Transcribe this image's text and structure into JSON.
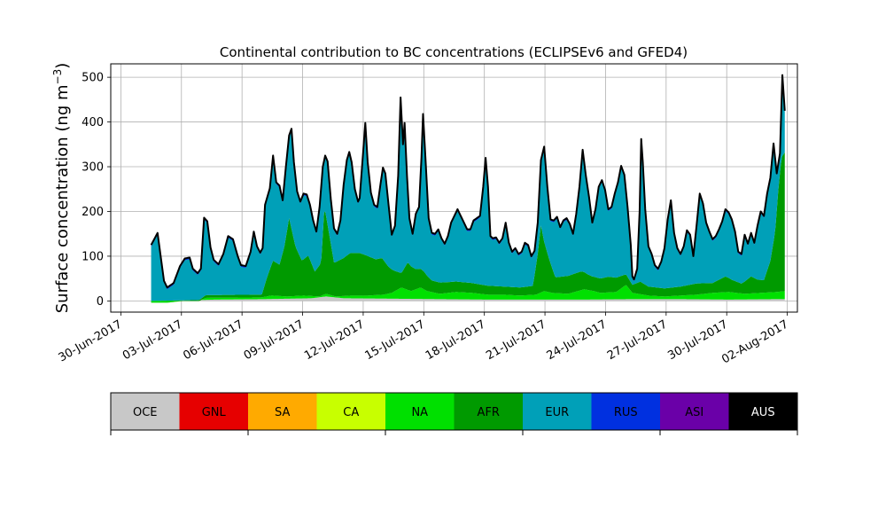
{
  "chart_data": {
    "type": "area",
    "title": "Continental contribution to BC concentrations (ECLIPSEv6 and GFED4)",
    "ylabel": "Surface concentration (ng m",
    "ylabel_sup": "−3",
    "ylabel_close": ")",
    "xlabel": "",
    "ylim": [
      -25,
      530
    ],
    "yticks": [
      0,
      100,
      200,
      300,
      400,
      500
    ],
    "xlim": [
      "2017-06-29T12:00",
      "2017-08-02T12:00"
    ],
    "xticks": [
      "30-Jun-2017",
      "03-Jul-2017",
      "06-Jul-2017",
      "09-Jul-2017",
      "12-Jul-2017",
      "15-Jul-2017",
      "18-Jul-2017",
      "21-Jul-2017",
      "24-Jul-2017",
      "27-Jul-2017",
      "30-Jul-2017",
      "02-Aug-2017"
    ],
    "grid": true,
    "legend_placement": "bottom colorbar",
    "categories": [
      "OCE",
      "GNL",
      "SA",
      "CA",
      "NA",
      "AFR",
      "EUR",
      "RUS",
      "ASI",
      "AUS"
    ],
    "colors": [
      "#c8c8c8",
      "#e60000",
      "#ffaa00",
      "#c8ff00",
      "#00e000",
      "#009a00",
      "#00a0b8",
      "#0030e0",
      "#6a00a8",
      "#000000"
    ],
    "series_time_start": "2017-07-01T12:00",
    "series_time_end": "2017-08-01T21:00",
    "total": [
      [
        0,
        125
      ],
      [
        0.4,
        152
      ],
      [
        0.8,
        45
      ],
      [
        1,
        30
      ],
      [
        1.4,
        40
      ],
      [
        1.8,
        78
      ],
      [
        2.1,
        95
      ],
      [
        2.4,
        97
      ],
      [
        2.6,
        72
      ],
      [
        2.9,
        62
      ],
      [
        3.1,
        72
      ],
      [
        3.3,
        186
      ],
      [
        3.5,
        178
      ],
      [
        3.7,
        120
      ],
      [
        3.9,
        92
      ],
      [
        4.2,
        82
      ],
      [
        4.5,
        105
      ],
      [
        4.8,
        145
      ],
      [
        5.1,
        138
      ],
      [
        5.4,
        100
      ],
      [
        5.6,
        80
      ],
      [
        5.9,
        78
      ],
      [
        6.2,
        110
      ],
      [
        6.4,
        155
      ],
      [
        6.6,
        122
      ],
      [
        6.8,
        108
      ],
      [
        6.95,
        118
      ],
      [
        7.1,
        215
      ],
      [
        7.4,
        252
      ],
      [
        7.6,
        325
      ],
      [
        7.8,
        265
      ],
      [
        8.0,
        258
      ],
      [
        8.2,
        225
      ],
      [
        8.4,
        300
      ],
      [
        8.6,
        370
      ],
      [
        8.75,
        385
      ],
      [
        8.9,
        310
      ],
      [
        9.1,
        245
      ],
      [
        9.3,
        222
      ],
      [
        9.5,
        240
      ],
      [
        9.7,
        238
      ],
      [
        9.9,
        215
      ],
      [
        10.1,
        180
      ],
      [
        10.3,
        155
      ],
      [
        10.5,
        210
      ],
      [
        10.7,
        300
      ],
      [
        10.85,
        325
      ],
      [
        11.0,
        312
      ],
      [
        11.2,
        228
      ],
      [
        11.4,
        162
      ],
      [
        11.6,
        150
      ],
      [
        11.8,
        180
      ],
      [
        12.0,
        260
      ],
      [
        12.2,
        315
      ],
      [
        12.35,
        333
      ],
      [
        12.5,
        310
      ],
      [
        12.7,
        250
      ],
      [
        12.9,
        222
      ],
      [
        13.0,
        230
      ],
      [
        13.2,
        325
      ],
      [
        13.35,
        398
      ],
      [
        13.5,
        310
      ],
      [
        13.7,
        242
      ],
      [
        13.9,
        215
      ],
      [
        14.1,
        210
      ],
      [
        14.3,
        262
      ],
      [
        14.45,
        298
      ],
      [
        14.6,
        285
      ],
      [
        14.8,
        215
      ],
      [
        15.0,
        148
      ],
      [
        15.2,
        168
      ],
      [
        15.4,
        280
      ],
      [
        15.55,
        455
      ],
      [
        15.7,
        350
      ],
      [
        15.8,
        398
      ],
      [
        15.95,
        280
      ],
      [
        16.1,
        185
      ],
      [
        16.3,
        150
      ],
      [
        16.5,
        195
      ],
      [
        16.7,
        210
      ],
      [
        16.85,
        320
      ],
      [
        16.95,
        418
      ],
      [
        17.1,
        320
      ],
      [
        17.3,
        185
      ],
      [
        17.5,
        152
      ],
      [
        17.7,
        150
      ],
      [
        17.9,
        160
      ],
      [
        18.1,
        140
      ],
      [
        18.3,
        128
      ],
      [
        18.5,
        145
      ],
      [
        18.7,
        175
      ],
      [
        18.9,
        190
      ],
      [
        19.1,
        205
      ],
      [
        19.3,
        190
      ],
      [
        19.5,
        175
      ],
      [
        19.7,
        160
      ],
      [
        19.9,
        160
      ],
      [
        20.1,
        180
      ],
      [
        20.3,
        185
      ],
      [
        20.5,
        190
      ],
      [
        20.7,
        255
      ],
      [
        20.85,
        320
      ],
      [
        21.0,
        255
      ],
      [
        21.15,
        145
      ],
      [
        21.3,
        140
      ],
      [
        21.5,
        142
      ],
      [
        21.7,
        130
      ],
      [
        21.9,
        140
      ],
      [
        22.1,
        175
      ],
      [
        22.3,
        130
      ],
      [
        22.5,
        110
      ],
      [
        22.7,
        118
      ],
      [
        22.9,
        105
      ],
      [
        23.1,
        110
      ],
      [
        23.3,
        130
      ],
      [
        23.5,
        125
      ],
      [
        23.7,
        100
      ],
      [
        23.9,
        112
      ],
      [
        24.1,
        175
      ],
      [
        24.3,
        315
      ],
      [
        24.5,
        345
      ],
      [
        24.7,
        255
      ],
      [
        24.9,
        182
      ],
      [
        25.1,
        180
      ],
      [
        25.3,
        188
      ],
      [
        25.5,
        165
      ],
      [
        25.7,
        180
      ],
      [
        25.9,
        185
      ],
      [
        26.1,
        172
      ],
      [
        26.3,
        150
      ],
      [
        26.5,
        195
      ],
      [
        26.7,
        255
      ],
      [
        26.9,
        338
      ],
      [
        27.1,
        280
      ],
      [
        27.3,
        232
      ],
      [
        27.5,
        175
      ],
      [
        27.7,
        205
      ],
      [
        27.9,
        255
      ],
      [
        28.1,
        270
      ],
      [
        28.3,
        248
      ],
      [
        28.5,
        205
      ],
      [
        28.7,
        210
      ],
      [
        28.9,
        240
      ],
      [
        29.1,
        265
      ],
      [
        29.3,
        302
      ],
      [
        29.5,
        282
      ],
      [
        29.7,
        210
      ],
      [
        29.9,
        125
      ],
      [
        30.0,
        55
      ],
      [
        30.1,
        48
      ],
      [
        30.3,
        72
      ],
      [
        30.45,
        200
      ],
      [
        30.55,
        362
      ],
      [
        30.65,
        310
      ],
      [
        30.8,
        205
      ],
      [
        31.0,
        122
      ],
      [
        31.2,
        105
      ],
      [
        31.4,
        80
      ],
      [
        31.6,
        72
      ],
      [
        31.8,
        88
      ],
      [
        32.0,
        118
      ],
      [
        32.2,
        182
      ],
      [
        32.4,
        225
      ],
      [
        32.6,
        152
      ],
      [
        32.8,
        118
      ],
      [
        33.0,
        105
      ],
      [
        33.2,
        122
      ],
      [
        33.4,
        158
      ],
      [
        33.6,
        148
      ],
      [
        33.8,
        100
      ],
      [
        34.0,
        168
      ],
      [
        34.2,
        240
      ],
      [
        34.4,
        218
      ],
      [
        34.6,
        175
      ],
      [
        34.8,
        155
      ],
      [
        35.0,
        138
      ],
      [
        35.2,
        145
      ],
      [
        35.4,
        160
      ],
      [
        35.6,
        178
      ],
      [
        35.8,
        205
      ],
      [
        36.0,
        198
      ],
      [
        36.2,
        182
      ],
      [
        36.4,
        155
      ],
      [
        36.6,
        110
      ],
      [
        36.8,
        105
      ],
      [
        37.0,
        148
      ],
      [
        37.2,
        128
      ],
      [
        37.4,
        152
      ],
      [
        37.6,
        130
      ],
      [
        37.8,
        168
      ],
      [
        38.0,
        200
      ],
      [
        38.2,
        190
      ],
      [
        38.4,
        240
      ],
      [
        38.6,
        275
      ],
      [
        38.8,
        352
      ],
      [
        39.0,
        285
      ],
      [
        39.2,
        330
      ],
      [
        39.35,
        505
      ],
      [
        39.5,
        425
      ]
    ],
    "afr": [
      [
        0,
        0
      ],
      [
        3,
        2
      ],
      [
        3.4,
        6
      ],
      [
        6.9,
        6
      ],
      [
        7.2,
        40
      ],
      [
        7.6,
        78
      ],
      [
        8.0,
        70
      ],
      [
        8.3,
        110
      ],
      [
        8.6,
        175
      ],
      [
        9.0,
        110
      ],
      [
        9.4,
        78
      ],
      [
        9.8,
        90
      ],
      [
        10.2,
        55
      ],
      [
        10.6,
        75
      ],
      [
        10.8,
        195
      ],
      [
        11.0,
        155
      ],
      [
        11.4,
        75
      ],
      [
        12.0,
        85
      ],
      [
        12.4,
        95
      ],
      [
        13.0,
        95
      ],
      [
        13.4,
        90
      ],
      [
        14.0,
        80
      ],
      [
        14.4,
        82
      ],
      [
        14.8,
        60
      ],
      [
        15.2,
        45
      ],
      [
        15.6,
        32
      ],
      [
        16.0,
        62
      ],
      [
        16.5,
        45
      ],
      [
        17.0,
        40
      ],
      [
        17.5,
        26
      ],
      [
        18.5,
        24
      ],
      [
        20.0,
        22
      ],
      [
        21.0,
        20
      ],
      [
        22.0,
        18
      ],
      [
        23.0,
        18
      ],
      [
        23.8,
        20
      ],
      [
        24.1,
        90
      ],
      [
        24.3,
        150
      ],
      [
        24.5,
        110
      ],
      [
        24.8,
        75
      ],
      [
        25.2,
        35
      ],
      [
        26.0,
        40
      ],
      [
        26.8,
        42
      ],
      [
        27.2,
        35
      ],
      [
        27.5,
        32
      ],
      [
        28.0,
        32
      ],
      [
        28.5,
        35
      ],
      [
        29.0,
        32
      ],
      [
        29.5,
        25
      ],
      [
        30.0,
        18
      ],
      [
        30.5,
        28
      ],
      [
        31.0,
        20
      ],
      [
        32.0,
        18
      ],
      [
        33.0,
        20
      ],
      [
        34.0,
        25
      ],
      [
        35.0,
        22
      ],
      [
        35.8,
        35
      ],
      [
        36.2,
        28
      ],
      [
        36.8,
        22
      ],
      [
        37.4,
        38
      ],
      [
        37.8,
        30
      ],
      [
        38.2,
        28
      ],
      [
        38.6,
        70
      ],
      [
        38.9,
        135
      ],
      [
        39.1,
        230
      ],
      [
        39.3,
        300
      ],
      [
        39.5,
        310
      ]
    ],
    "na": [
      [
        0,
        0
      ],
      [
        3,
        0
      ],
      [
        3.4,
        7
      ],
      [
        6.9,
        8
      ],
      [
        7.5,
        12
      ],
      [
        8.5,
        10
      ],
      [
        9.5,
        12
      ],
      [
        10.5,
        10
      ],
      [
        10.9,
        16
      ],
      [
        11.5,
        10
      ],
      [
        12.5,
        12
      ],
      [
        13.5,
        12
      ],
      [
        14.5,
        14
      ],
      [
        15.0,
        18
      ],
      [
        15.6,
        30
      ],
      [
        16.2,
        22
      ],
      [
        16.8,
        30
      ],
      [
        17.2,
        22
      ],
      [
        18.0,
        16
      ],
      [
        19.0,
        20
      ],
      [
        20.0,
        18
      ],
      [
        21.0,
        14
      ],
      [
        22.0,
        14
      ],
      [
        23.0,
        12
      ],
      [
        24.0,
        14
      ],
      [
        24.5,
        22
      ],
      [
        25.0,
        18
      ],
      [
        26.0,
        16
      ],
      [
        27.0,
        26
      ],
      [
        27.6,
        22
      ],
      [
        28.0,
        18
      ],
      [
        29.0,
        20
      ],
      [
        29.6,
        36
      ],
      [
        30.0,
        18
      ],
      [
        31.0,
        12
      ],
      [
        32.0,
        10
      ],
      [
        33.0,
        12
      ],
      [
        34.0,
        14
      ],
      [
        35.0,
        18
      ],
      [
        36.0,
        20
      ],
      [
        37.0,
        16
      ],
      [
        38.0,
        18
      ],
      [
        39.0,
        20
      ],
      [
        39.5,
        22
      ]
    ],
    "oce": [
      [
        0,
        -4
      ],
      [
        1,
        -4
      ],
      [
        2,
        0
      ],
      [
        3,
        2
      ],
      [
        4,
        3
      ],
      [
        7,
        4
      ],
      [
        10,
        6
      ],
      [
        10.9,
        10
      ],
      [
        12,
        6
      ],
      [
        15,
        5
      ],
      [
        18,
        4
      ],
      [
        21,
        3
      ],
      [
        24,
        3
      ],
      [
        27,
        3
      ],
      [
        30,
        4
      ],
      [
        33,
        4
      ],
      [
        36,
        3
      ],
      [
        39,
        4
      ],
      [
        39.5,
        4
      ]
    ]
  },
  "legend": {
    "items": [
      {
        "label": "OCE",
        "color": "#c8c8c8"
      },
      {
        "label": "GNL",
        "color": "#e60000"
      },
      {
        "label": "SA",
        "color": "#ffaa00"
      },
      {
        "label": "CA",
        "color": "#c8ff00"
      },
      {
        "label": "NA",
        "color": "#00e000"
      },
      {
        "label": "AFR",
        "color": "#009a00"
      },
      {
        "label": "EUR",
        "color": "#00a0b8"
      },
      {
        "label": "RUS",
        "color": "#0030e0"
      },
      {
        "label": "ASI",
        "color": "#6a00a8"
      },
      {
        "label": "AUS",
        "color": "#000000"
      }
    ]
  }
}
